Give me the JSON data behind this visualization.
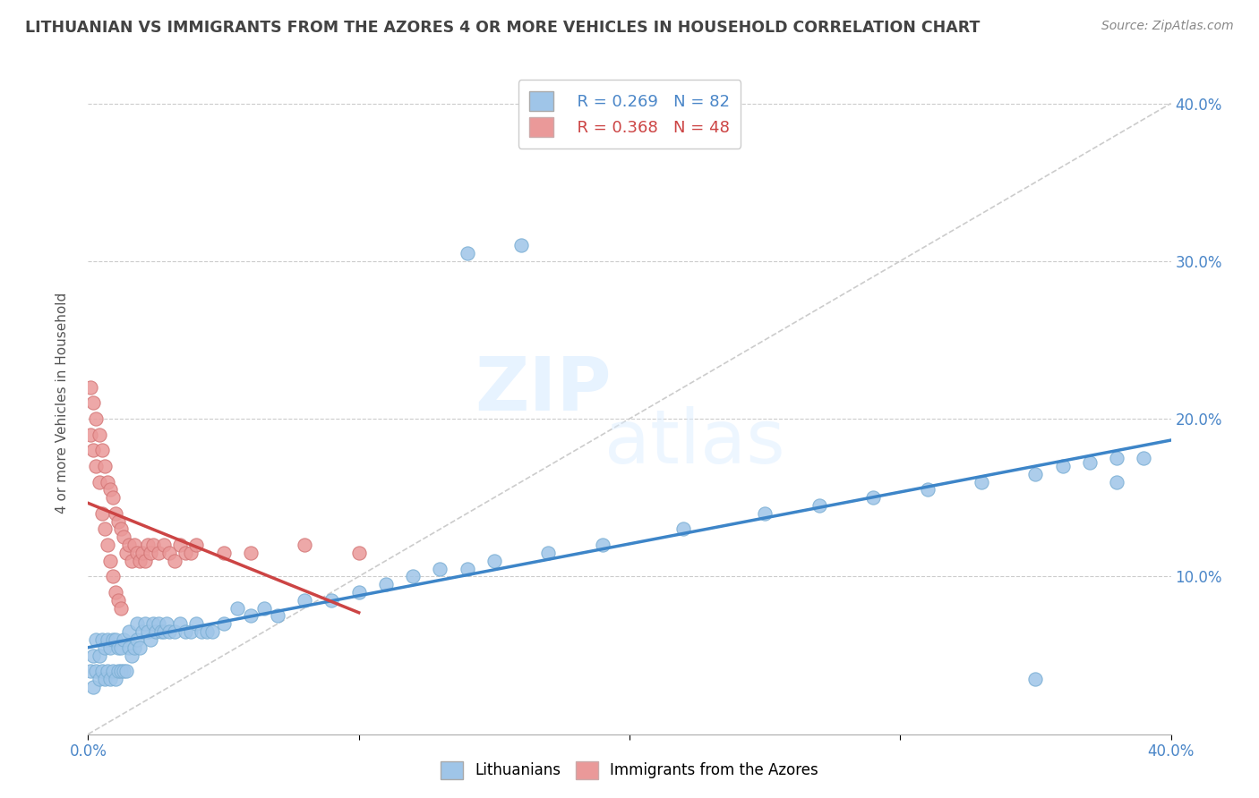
{
  "title": "LITHUANIAN VS IMMIGRANTS FROM THE AZORES 4 OR MORE VEHICLES IN HOUSEHOLD CORRELATION CHART",
  "source": "Source: ZipAtlas.com",
  "legend_label1": "Lithuanians",
  "legend_label2": "Immigrants from the Azores",
  "ylabel": "4 or more Vehicles in Household",
  "R1": 0.269,
  "N1": 82,
  "R2": 0.368,
  "N2": 48,
  "blue_color": "#9fc5e8",
  "pink_color": "#ea9999",
  "blue_line_color": "#3d85c8",
  "pink_line_color": "#cc4444",
  "diagonal_color": "#cccccc",
  "background_color": "#ffffff",
  "grid_color": "#cccccc",
  "title_color": "#434343",
  "tick_color": "#4a86c8",
  "xmin": 0.0,
  "xmax": 0.4,
  "ymin": 0.0,
  "ymax": 0.42,
  "blue_x": [
    0.001,
    0.002,
    0.002,
    0.003,
    0.003,
    0.004,
    0.004,
    0.005,
    0.005,
    0.006,
    0.006,
    0.007,
    0.007,
    0.008,
    0.008,
    0.009,
    0.009,
    0.01,
    0.01,
    0.011,
    0.011,
    0.012,
    0.012,
    0.013,
    0.013,
    0.014,
    0.015,
    0.015,
    0.016,
    0.017,
    0.018,
    0.018,
    0.019,
    0.02,
    0.021,
    0.022,
    0.023,
    0.024,
    0.025,
    0.026,
    0.027,
    0.028,
    0.029,
    0.03,
    0.032,
    0.034,
    0.036,
    0.038,
    0.04,
    0.042,
    0.044,
    0.046,
    0.05,
    0.055,
    0.06,
    0.065,
    0.07,
    0.08,
    0.09,
    0.1,
    0.11,
    0.12,
    0.13,
    0.14,
    0.15,
    0.17,
    0.19,
    0.22,
    0.25,
    0.27,
    0.29,
    0.31,
    0.33,
    0.35,
    0.36,
    0.37,
    0.38,
    0.38,
    0.39,
    0.14,
    0.16,
    0.35
  ],
  "blue_y": [
    0.04,
    0.05,
    0.03,
    0.04,
    0.06,
    0.035,
    0.05,
    0.04,
    0.06,
    0.035,
    0.055,
    0.04,
    0.06,
    0.035,
    0.055,
    0.04,
    0.06,
    0.035,
    0.06,
    0.04,
    0.055,
    0.04,
    0.055,
    0.04,
    0.06,
    0.04,
    0.055,
    0.065,
    0.05,
    0.055,
    0.06,
    0.07,
    0.055,
    0.065,
    0.07,
    0.065,
    0.06,
    0.07,
    0.065,
    0.07,
    0.065,
    0.065,
    0.07,
    0.065,
    0.065,
    0.07,
    0.065,
    0.065,
    0.07,
    0.065,
    0.065,
    0.065,
    0.07,
    0.08,
    0.075,
    0.08,
    0.075,
    0.085,
    0.085,
    0.09,
    0.095,
    0.1,
    0.105,
    0.105,
    0.11,
    0.115,
    0.12,
    0.13,
    0.14,
    0.145,
    0.15,
    0.155,
    0.16,
    0.165,
    0.17,
    0.172,
    0.175,
    0.16,
    0.175,
    0.305,
    0.31,
    0.035
  ],
  "pink_x": [
    0.001,
    0.001,
    0.002,
    0.002,
    0.003,
    0.003,
    0.004,
    0.004,
    0.005,
    0.005,
    0.006,
    0.006,
    0.007,
    0.007,
    0.008,
    0.008,
    0.009,
    0.009,
    0.01,
    0.01,
    0.011,
    0.011,
    0.012,
    0.012,
    0.013,
    0.014,
    0.015,
    0.016,
    0.017,
    0.018,
    0.019,
    0.02,
    0.021,
    0.022,
    0.023,
    0.024,
    0.026,
    0.028,
    0.03,
    0.032,
    0.034,
    0.036,
    0.038,
    0.04,
    0.05,
    0.06,
    0.08,
    0.1
  ],
  "pink_y": [
    0.22,
    0.19,
    0.21,
    0.18,
    0.2,
    0.17,
    0.19,
    0.16,
    0.18,
    0.14,
    0.17,
    0.13,
    0.16,
    0.12,
    0.155,
    0.11,
    0.15,
    0.1,
    0.14,
    0.09,
    0.135,
    0.085,
    0.13,
    0.08,
    0.125,
    0.115,
    0.12,
    0.11,
    0.12,
    0.115,
    0.11,
    0.115,
    0.11,
    0.12,
    0.115,
    0.12,
    0.115,
    0.12,
    0.115,
    0.11,
    0.12,
    0.115,
    0.115,
    0.12,
    0.115,
    0.115,
    0.12,
    0.115
  ]
}
